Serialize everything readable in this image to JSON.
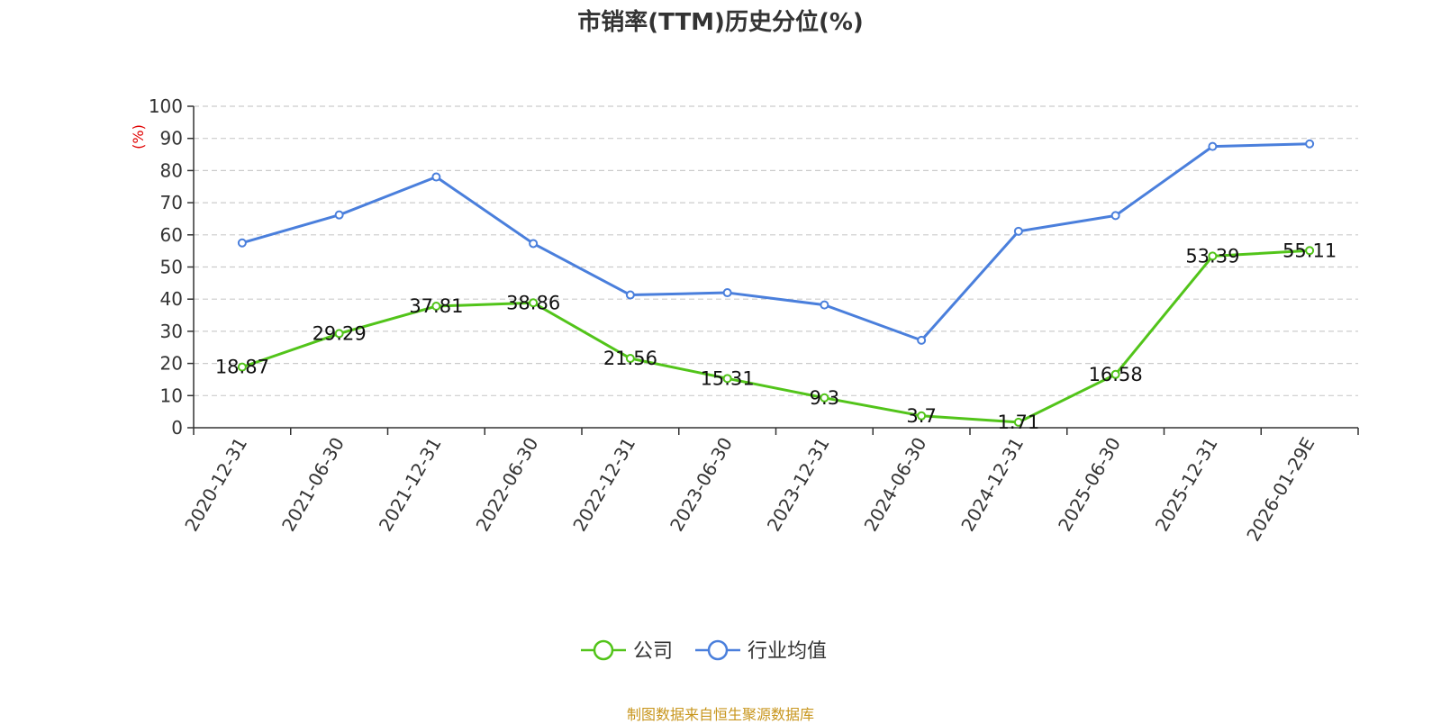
{
  "chart_data": {
    "type": "line",
    "title": "市销率(TTM)历史分位(%)",
    "ylabel": "(%)",
    "ylim": [
      0,
      100
    ],
    "yticks": [
      0,
      10,
      20,
      30,
      40,
      50,
      60,
      70,
      80,
      90,
      100
    ],
    "categories": [
      "2020-12-31",
      "2021-06-30",
      "2021-12-31",
      "2022-06-30",
      "2022-12-31",
      "2023-06-30",
      "2023-12-31",
      "2024-06-30",
      "2024-12-31",
      "2025-06-30",
      "2025-12-31",
      "2026-01-29E"
    ],
    "series": [
      {
        "name": "公司",
        "color": "#52c41a",
        "values": [
          18.87,
          29.29,
          37.81,
          38.86,
          21.56,
          15.31,
          9.3,
          3.7,
          1.71,
          16.58,
          53.39,
          55.11
        ],
        "labels": [
          "18.87",
          "29.29",
          "37.81",
          "38.86",
          "21.56",
          "15.31",
          "9.3",
          "3.7",
          "1.71",
          "16.58",
          "53.39",
          "55.11"
        ]
      },
      {
        "name": "行业均值",
        "color": "#4a7fdc",
        "values": [
          57.5,
          66.2,
          78.0,
          57.3,
          41.3,
          42.0,
          38.2,
          27.2,
          61.1,
          66.0,
          87.5,
          88.3
        ]
      }
    ],
    "grid": true,
    "legend_position": "bottom-center",
    "unit_label_color": "#e00000"
  },
  "source": {
    "text": "制图数据来自恒生聚源数据库",
    "color": "#c8961e"
  }
}
